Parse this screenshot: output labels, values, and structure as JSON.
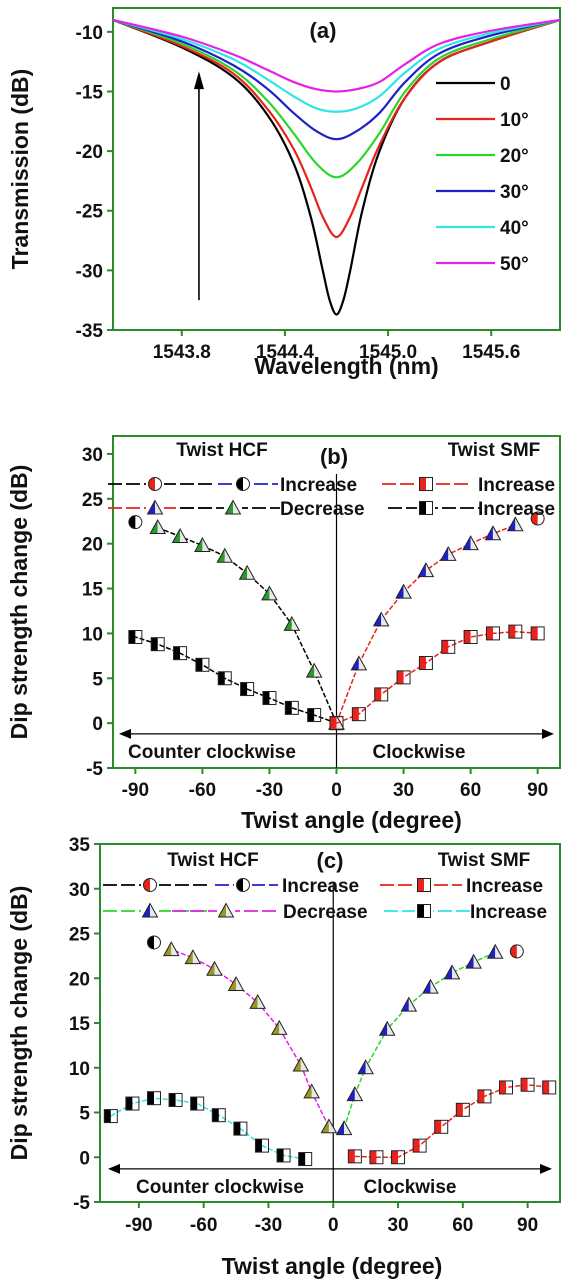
{
  "chart_data": [
    {
      "panel": "(a)",
      "type": "line",
      "xlabel": "Wavelength (nm)",
      "ylabel": "Transmission (dB)",
      "xlim": [
        1543.4,
        1546.0
      ],
      "ylim": [
        -35,
        -8
      ],
      "xticks": [
        1543.8,
        1544.4,
        1545.0,
        1545.6
      ],
      "xtick_labels": [
        "1543.8",
        "1544.4",
        "1545.0",
        "1545.6"
      ],
      "yticks": [
        -35,
        -30,
        -25,
        -20,
        -15,
        -10
      ],
      "ytick_labels": [
        "-35",
        "-30",
        "-25",
        "-20",
        "-15",
        "-10"
      ],
      "legend_position": "right",
      "arrow": "upward arrow near x = 1543.9",
      "series": [
        {
          "name": "0",
          "color": "#000000",
          "x": [
            1543.4,
            1543.8,
            1544.1,
            1544.3,
            1544.45,
            1544.55,
            1544.62,
            1544.66,
            1544.7,
            1544.74,
            1544.78,
            1544.85,
            1544.95,
            1545.1,
            1545.3,
            1545.6,
            1546.0
          ],
          "values": [
            -9.0,
            -11.3,
            -13.8,
            -17.0,
            -21.0,
            -25.5,
            -30.0,
            -32.5,
            -33.7,
            -32.5,
            -30.0,
            -25.0,
            -20.0,
            -15.5,
            -12.5,
            -10.8,
            -9.0
          ]
        },
        {
          "name": "10°",
          "color": "#e8231d",
          "x": [
            1543.4,
            1543.8,
            1544.1,
            1544.3,
            1544.45,
            1544.55,
            1544.62,
            1544.7,
            1544.78,
            1544.85,
            1544.95,
            1545.1,
            1545.3,
            1545.6,
            1546.0
          ],
          "values": [
            -9.0,
            -11.2,
            -13.5,
            -16.5,
            -19.8,
            -23.0,
            -25.5,
            -27.2,
            -25.5,
            -23.0,
            -19.5,
            -15.5,
            -12.5,
            -10.8,
            -9.0
          ]
        },
        {
          "name": "20°",
          "color": "#2bd62b",
          "x": [
            1543.4,
            1543.8,
            1544.1,
            1544.3,
            1544.45,
            1544.58,
            1544.7,
            1544.82,
            1544.95,
            1545.1,
            1545.3,
            1545.6,
            1546.0
          ],
          "values": [
            -9.0,
            -11.0,
            -13.2,
            -15.8,
            -18.5,
            -21.0,
            -22.2,
            -21.0,
            -18.5,
            -15.0,
            -12.2,
            -10.6,
            -9.0
          ]
        },
        {
          "name": "30°",
          "color": "#2020c8",
          "x": [
            1543.4,
            1543.8,
            1544.1,
            1544.3,
            1544.45,
            1544.58,
            1544.7,
            1544.82,
            1544.95,
            1545.1,
            1545.3,
            1545.6,
            1546.0
          ],
          "values": [
            -9.0,
            -10.8,
            -12.8,
            -14.8,
            -16.8,
            -18.3,
            -19.0,
            -18.3,
            -16.8,
            -14.2,
            -11.8,
            -10.3,
            -9.0
          ]
        },
        {
          "name": "40°",
          "color": "#2fe5e5",
          "x": [
            1543.4,
            1543.8,
            1544.1,
            1544.3,
            1544.45,
            1544.58,
            1544.7,
            1544.82,
            1544.95,
            1545.1,
            1545.3,
            1545.6,
            1546.0
          ],
          "values": [
            -9.0,
            -10.6,
            -12.3,
            -14.0,
            -15.4,
            -16.4,
            -16.7,
            -16.4,
            -15.4,
            -13.4,
            -11.4,
            -10.1,
            -9.0
          ]
        },
        {
          "name": "50°",
          "color": "#e521e5",
          "x": [
            1543.4,
            1543.8,
            1544.1,
            1544.3,
            1544.45,
            1544.58,
            1544.7,
            1544.82,
            1544.95,
            1545.1,
            1545.3,
            1545.6,
            1546.0
          ],
          "values": [
            -9.0,
            -10.4,
            -11.9,
            -13.2,
            -14.2,
            -14.8,
            -15.0,
            -14.8,
            -14.2,
            -12.7,
            -11.0,
            -9.9,
            -9.0
          ]
        }
      ]
    },
    {
      "panel": "(b)",
      "type": "line",
      "xlabel": "Twist angle (degree)",
      "ylabel": "Dip strength change (dB)",
      "xlim": [
        -100,
        100
      ],
      "ylim": [
        -5,
        32
      ],
      "xticks": [
        -90,
        -60,
        -30,
        0,
        30,
        60,
        90
      ],
      "xtick_labels": [
        "-90",
        "-60",
        "-30",
        "0",
        "30",
        "60",
        "90"
      ],
      "yticks": [
        -5,
        0,
        5,
        10,
        15,
        20,
        25,
        30
      ],
      "ytick_labels": [
        "-5",
        "0",
        "5",
        "10",
        "15",
        "20",
        "25",
        "30"
      ],
      "group_titles": [
        "Twist HCF",
        "Twist SMF"
      ],
      "annotations": [
        "Counter clockwise",
        "Clockwise"
      ],
      "legend": [
        {
          "marker": "circle-half",
          "marker_color": "#e8231d",
          "line_color": "#000000"
        },
        {
          "marker": "circle-half",
          "marker_color": "#000000",
          "line_color": "#2020c8",
          "label": "Increase"
        },
        {
          "marker": "square-half",
          "marker_color": "#e8231d",
          "line_color": "#e8231d",
          "label": "Increase"
        },
        {
          "marker": "triangle-half",
          "marker_color": "#2020c8",
          "line_color": "#e8231d"
        },
        {
          "marker": "triangle-half",
          "marker_color": "#2a9a2a",
          "line_color": "#000000",
          "label": "Decrease"
        },
        {
          "marker": "square-half",
          "marker_color": "#000000",
          "line_color": "#000000",
          "label": "Increase"
        }
      ],
      "series": [
        {
          "marker": "triangle-half",
          "marker_color": "#2a9a2a",
          "line_color": "#000000",
          "x": [
            0,
            -10,
            -20,
            -30,
            -40,
            -50,
            -60,
            -70,
            -80
          ],
          "values": [
            0,
            5.8,
            11.0,
            14.4,
            16.7,
            18.6,
            19.8,
            20.8,
            21.8
          ]
        },
        {
          "marker": "circle-half",
          "marker_color": "#000000",
          "line_color": "#2020c8",
          "x": [
            -90
          ],
          "values": [
            22.4
          ]
        },
        {
          "marker": "square-half",
          "marker_color": "#000000",
          "line_color": "#000000",
          "x": [
            0,
            -10,
            -20,
            -30,
            -40,
            -50,
            -60,
            -70,
            -80,
            -90
          ],
          "values": [
            0,
            0.9,
            1.7,
            2.8,
            3.8,
            5.0,
            6.5,
            7.8,
            8.8,
            9.6
          ]
        },
        {
          "marker": "triangle-half",
          "marker_color": "#2020c8",
          "line_color": "#e8231d",
          "x": [
            0,
            10,
            20,
            30,
            40,
            50,
            60,
            70,
            80
          ],
          "values": [
            0,
            6.6,
            11.5,
            14.6,
            17.0,
            18.8,
            20.0,
            21.1,
            22.1
          ]
        },
        {
          "marker": "circle-half",
          "marker_color": "#e8231d",
          "line_color": "#000000",
          "x": [
            90
          ],
          "values": [
            22.8
          ]
        },
        {
          "marker": "square-half",
          "marker_color": "#e8231d",
          "line_color": "#e8231d",
          "x": [
            0,
            10,
            20,
            30,
            40,
            50,
            60,
            70,
            80,
            90
          ],
          "values": [
            0,
            1.0,
            3.2,
            5.1,
            6.7,
            8.5,
            9.6,
            10.0,
            10.2,
            10.0
          ]
        }
      ]
    },
    {
      "panel": "(c)",
      "type": "line",
      "xlabel": "Twist angle (degree)",
      "ylabel": "Dip strength change (dB)",
      "xlim": [
        -108,
        105
      ],
      "ylim": [
        -5,
        35
      ],
      "xticks": [
        -90,
        -60,
        -30,
        0,
        30,
        60,
        90
      ],
      "xtick_labels": [
        "-90",
        "-60",
        "-30",
        "0",
        "30",
        "60",
        "90"
      ],
      "yticks": [
        -5,
        0,
        5,
        10,
        15,
        20,
        25,
        30,
        35
      ],
      "ytick_labels": [
        "-5",
        "0",
        "5",
        "10",
        "15",
        "20",
        "25",
        "30",
        "35"
      ],
      "group_titles": [
        "Twist HCF",
        "Twist SMF"
      ],
      "annotations": [
        "Counter clockwise",
        "Clockwise"
      ],
      "legend": [
        {
          "marker": "circle-half",
          "marker_color": "#e8231d",
          "line_color": "#000000"
        },
        {
          "marker": "circle-half",
          "marker_color": "#000000",
          "line_color": "#2020c8",
          "label": "Increase"
        },
        {
          "marker": "square-half",
          "marker_color": "#e8231d",
          "line_color": "#e8231d",
          "label": "Increase"
        },
        {
          "marker": "triangle-half",
          "marker_color": "#2020c8",
          "line_color": "#2bd62b"
        },
        {
          "marker": "triangle-half",
          "marker_color": "#9a9a20",
          "line_color": "#e521e5",
          "label": "Decrease"
        },
        {
          "marker": "square-half",
          "marker_color": "#000000",
          "line_color": "#2fe5e5",
          "label": "Increase"
        }
      ],
      "series": [
        {
          "marker": "triangle-half",
          "marker_color": "#9a9a20",
          "line_color": "#e521e5",
          "x": [
            -2,
            -10,
            -15,
            -25,
            -35,
            -45,
            -55,
            -65,
            -75
          ],
          "values": [
            3.4,
            7.3,
            10.3,
            14.4,
            17.3,
            19.3,
            21.0,
            22.3,
            23.2
          ]
        },
        {
          "marker": "circle-half",
          "marker_color": "#000000",
          "line_color": "#2020c8",
          "x": [
            -83
          ],
          "values": [
            24.0
          ]
        },
        {
          "marker": "square-half",
          "marker_color": "#000000",
          "line_color": "#2fe5e5",
          "x": [
            -103,
            -93,
            -83,
            -73,
            -63,
            -53,
            -43,
            -33,
            -23,
            -13
          ],
          "values": [
            4.6,
            6.0,
            6.6,
            6.4,
            6.0,
            4.7,
            3.2,
            1.3,
            0.2,
            -0.2
          ]
        },
        {
          "marker": "triangle-half",
          "marker_color": "#2020c8",
          "line_color": "#2bd62b",
          "x": [
            5,
            10,
            15,
            25,
            35,
            45,
            55,
            65,
            75
          ],
          "values": [
            3.2,
            7.0,
            10.0,
            14.3,
            17.0,
            19.0,
            20.6,
            21.8,
            22.9
          ]
        },
        {
          "marker": "circle-half",
          "marker_color": "#e8231d",
          "line_color": "#000000",
          "x": [
            85
          ],
          "values": [
            23.0
          ]
        },
        {
          "marker": "square-half",
          "marker_color": "#e8231d",
          "line_color": "#e8231d",
          "x": [
            10,
            20,
            30,
            40,
            50,
            60,
            70,
            80,
            90,
            100
          ],
          "values": [
            0.1,
            0,
            0,
            1.3,
            3.4,
            5.3,
            6.8,
            7.8,
            8.1,
            7.8
          ]
        }
      ]
    }
  ]
}
